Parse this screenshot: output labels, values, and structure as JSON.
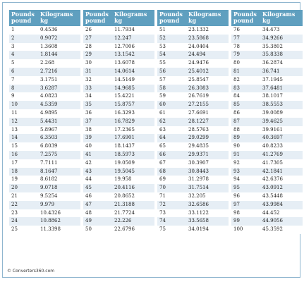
{
  "table": {
    "header_pounds": "Pounds\npound",
    "header_kilograms": "Kilograms\nkg",
    "blocks": [
      {
        "rows": [
          [
            "1",
            "0.4536"
          ],
          [
            "2",
            "0.9072"
          ],
          [
            "3",
            "1.3608"
          ],
          [
            "4",
            "1.8144"
          ],
          [
            "5",
            "2.268"
          ],
          [
            "6",
            "2.7216"
          ],
          [
            "7",
            "3.1751"
          ],
          [
            "8",
            "3.6287"
          ],
          [
            "9",
            "4.0823"
          ],
          [
            "10",
            "4.5359"
          ],
          [
            "11",
            "4.9895"
          ],
          [
            "12",
            "5.4431"
          ],
          [
            "13",
            "5.8967"
          ],
          [
            "14",
            "6.3503"
          ],
          [
            "15",
            "6.8039"
          ],
          [
            "16",
            "7.2575"
          ],
          [
            "17",
            "7.7111"
          ],
          [
            "18",
            "8.1647"
          ],
          [
            "19",
            "8.6182"
          ],
          [
            "20",
            "9.0718"
          ],
          [
            "21",
            "9.5254"
          ],
          [
            "22",
            "9.979"
          ],
          [
            "23",
            "10.4326"
          ],
          [
            "24",
            "10.8862"
          ],
          [
            "25",
            "11.3398"
          ]
        ]
      },
      {
        "rows": [
          [
            "26",
            "11.7934"
          ],
          [
            "27",
            "12.247"
          ],
          [
            "28",
            "12.7006"
          ],
          [
            "29",
            "13.1542"
          ],
          [
            "30",
            "13.6078"
          ],
          [
            "31",
            "14.0614"
          ],
          [
            "32",
            "14.5149"
          ],
          [
            "33",
            "14.9685"
          ],
          [
            "34",
            "15.4221"
          ],
          [
            "35",
            "15.8757"
          ],
          [
            "36",
            "16.3293"
          ],
          [
            "37",
            "16.7829"
          ],
          [
            "38",
            "17.2365"
          ],
          [
            "39",
            "17.6901"
          ],
          [
            "40",
            "18.1437"
          ],
          [
            "41",
            "18.5973"
          ],
          [
            "42",
            "19.0509"
          ],
          [
            "43",
            "19.5045"
          ],
          [
            "44",
            "19.958"
          ],
          [
            "45",
            "20.4116"
          ],
          [
            "46",
            "20.8652"
          ],
          [
            "47",
            "21.3188"
          ],
          [
            "48",
            "21.7724"
          ],
          [
            "49",
            "22.226"
          ],
          [
            "50",
            "22.6796"
          ]
        ]
      },
      {
        "rows": [
          [
            "51",
            "23.1332"
          ],
          [
            "52",
            "23.5868"
          ],
          [
            "53",
            "24.0404"
          ],
          [
            "54",
            "24.494"
          ],
          [
            "55",
            "24.9476"
          ],
          [
            "56",
            "25.4012"
          ],
          [
            "57",
            "25.8547"
          ],
          [
            "58",
            "26.3083"
          ],
          [
            "59",
            "26.7619"
          ],
          [
            "60",
            "27.2155"
          ],
          [
            "61",
            "27.6691"
          ],
          [
            "62",
            "28.1227"
          ],
          [
            "63",
            "28.5763"
          ],
          [
            "64",
            "29.0299"
          ],
          [
            "65",
            "29.4835"
          ],
          [
            "66",
            "29.9371"
          ],
          [
            "67",
            "30.3907"
          ],
          [
            "68",
            "30.8443"
          ],
          [
            "69",
            "31.2978"
          ],
          [
            "70",
            "31.7514"
          ],
          [
            "71",
            "32.205"
          ],
          [
            "72",
            "32.6586"
          ],
          [
            "73",
            "33.1122"
          ],
          [
            "74",
            "33.5658"
          ],
          [
            "75",
            "34.0194"
          ]
        ]
      },
      {
        "rows": [
          [
            "76",
            "34.473"
          ],
          [
            "77",
            "34.9266"
          ],
          [
            "78",
            "35.3802"
          ],
          [
            "79",
            "35.8338"
          ],
          [
            "80",
            "36.2874"
          ],
          [
            "81",
            "36.741"
          ],
          [
            "82",
            "37.1945"
          ],
          [
            "83",
            "37.6481"
          ],
          [
            "84",
            "38.1017"
          ],
          [
            "85",
            "38.5553"
          ],
          [
            "86",
            "39.0089"
          ],
          [
            "87",
            "39.4625"
          ],
          [
            "88",
            "39.9161"
          ],
          [
            "89",
            "40.3697"
          ],
          [
            "90",
            "40.8233"
          ],
          [
            "91",
            "41.2769"
          ],
          [
            "92",
            "41.7305"
          ],
          [
            "93",
            "42.1841"
          ],
          [
            "94",
            "42.6376"
          ],
          [
            "95",
            "43.0912"
          ],
          [
            "96",
            "43.5448"
          ],
          [
            "97",
            "43.9984"
          ],
          [
            "98",
            "44.452"
          ],
          [
            "99",
            "44.9056"
          ],
          [
            "100",
            "45.3592"
          ]
        ]
      }
    ]
  },
  "footer": "© Converters360.com",
  "colors": {
    "header_bg": "#5f9fbf",
    "row_alt_bg": "#e6eef5",
    "border": "#8fb6cf"
  }
}
